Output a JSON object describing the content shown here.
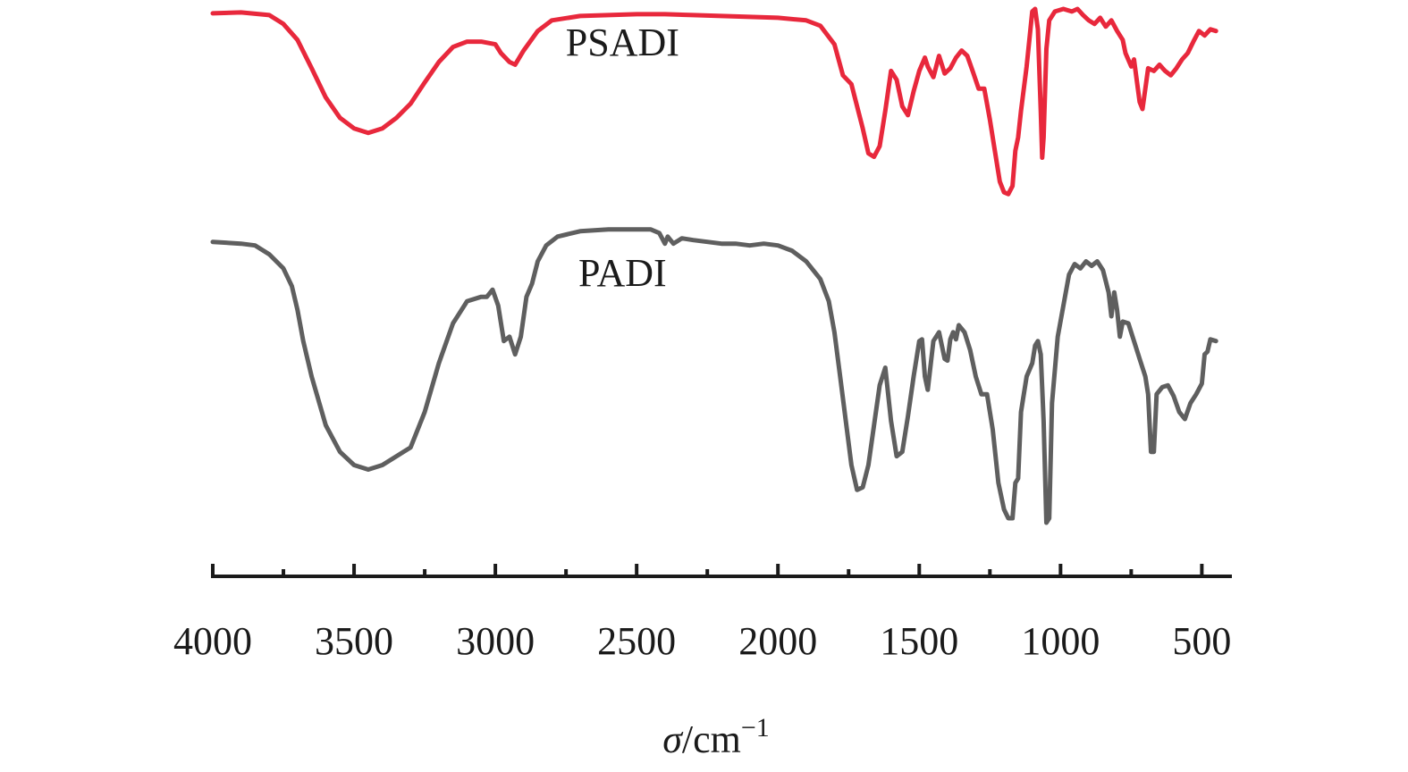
{
  "chart_data": {
    "type": "line",
    "title": "",
    "xlabel_symbol": "σ",
    "xlabel_unit": "/cm",
    "xlabel_exp": "−1",
    "ylabel": "",
    "xlim": [
      4000,
      400
    ],
    "x_reversed": true,
    "x_ticks": [
      4000,
      3500,
      3000,
      2500,
      2000,
      1500,
      1000,
      500
    ],
    "x_tick_labels": [
      "4000",
      "3500",
      "3000",
      "2500",
      "2000",
      "1500",
      "1000",
      "500"
    ],
    "x_minor_ticks": [
      3750,
      3250,
      2750,
      2250,
      1750,
      1250,
      750
    ],
    "y_axis_visible": false,
    "grid": false,
    "series": [
      {
        "name": "PSADI",
        "color": "#e8283c",
        "points": [
          [
            4000,
            10
          ],
          [
            3900,
            9
          ],
          [
            3800,
            12
          ],
          [
            3750,
            22
          ],
          [
            3700,
            40
          ],
          [
            3650,
            72
          ],
          [
            3600,
            105
          ],
          [
            3550,
            128
          ],
          [
            3500,
            140
          ],
          [
            3450,
            145
          ],
          [
            3400,
            140
          ],
          [
            3350,
            128
          ],
          [
            3300,
            112
          ],
          [
            3250,
            88
          ],
          [
            3200,
            65
          ],
          [
            3150,
            48
          ],
          [
            3100,
            42
          ],
          [
            3050,
            42
          ],
          [
            3000,
            45
          ],
          [
            2980,
            55
          ],
          [
            2950,
            65
          ],
          [
            2930,
            68
          ],
          [
            2900,
            52
          ],
          [
            2850,
            30
          ],
          [
            2800,
            18
          ],
          [
            2700,
            13
          ],
          [
            2600,
            12
          ],
          [
            2500,
            11
          ],
          [
            2400,
            11
          ],
          [
            2300,
            12
          ],
          [
            2200,
            13
          ],
          [
            2100,
            14
          ],
          [
            2000,
            15
          ],
          [
            1900,
            18
          ],
          [
            1850,
            24
          ],
          [
            1800,
            45
          ],
          [
            1770,
            80
          ],
          [
            1740,
            90
          ],
          [
            1700,
            140
          ],
          [
            1680,
            168
          ],
          [
            1660,
            172
          ],
          [
            1640,
            160
          ],
          [
            1620,
            120
          ],
          [
            1600,
            75
          ],
          [
            1580,
            85
          ],
          [
            1560,
            115
          ],
          [
            1540,
            125
          ],
          [
            1520,
            98
          ],
          [
            1500,
            75
          ],
          [
            1480,
            60
          ],
          [
            1470,
            70
          ],
          [
            1450,
            82
          ],
          [
            1430,
            58
          ],
          [
            1410,
            78
          ],
          [
            1390,
            72
          ],
          [
            1370,
            60
          ],
          [
            1350,
            52
          ],
          [
            1330,
            58
          ],
          [
            1310,
            76
          ],
          [
            1290,
            95
          ],
          [
            1270,
            95
          ],
          [
            1250,
            130
          ],
          [
            1230,
            170
          ],
          [
            1215,
            200
          ],
          [
            1200,
            212
          ],
          [
            1185,
            214
          ],
          [
            1170,
            205
          ],
          [
            1160,
            165
          ],
          [
            1150,
            150
          ],
          [
            1140,
            120
          ],
          [
            1120,
            70
          ],
          [
            1100,
            8
          ],
          [
            1090,
            5
          ],
          [
            1080,
            28
          ],
          [
            1070,
            120
          ],
          [
            1065,
            173
          ],
          [
            1060,
            150
          ],
          [
            1050,
            50
          ],
          [
            1040,
            18
          ],
          [
            1020,
            8
          ],
          [
            990,
            5
          ],
          [
            960,
            8
          ],
          [
            940,
            5
          ],
          [
            920,
            12
          ],
          [
            900,
            18
          ],
          [
            880,
            22
          ],
          [
            860,
            15
          ],
          [
            840,
            25
          ],
          [
            820,
            18
          ],
          [
            800,
            30
          ],
          [
            780,
            40
          ],
          [
            770,
            55
          ],
          [
            750,
            70
          ],
          [
            740,
            62
          ],
          [
            720,
            110
          ],
          [
            710,
            118
          ],
          [
            700,
            95
          ],
          [
            690,
            72
          ],
          [
            670,
            75
          ],
          [
            650,
            68
          ],
          [
            630,
            75
          ],
          [
            610,
            80
          ],
          [
            590,
            72
          ],
          [
            570,
            62
          ],
          [
            550,
            55
          ],
          [
            530,
            42
          ],
          [
            510,
            30
          ],
          [
            490,
            35
          ],
          [
            470,
            28
          ],
          [
            450,
            30
          ]
        ]
      },
      {
        "name": "PADI",
        "color": "#5f5f5f",
        "points": [
          [
            4000,
            268
          ],
          [
            3900,
            270
          ],
          [
            3850,
            272
          ],
          [
            3800,
            282
          ],
          [
            3750,
            298
          ],
          [
            3720,
            318
          ],
          [
            3700,
            345
          ],
          [
            3680,
            380
          ],
          [
            3650,
            420
          ],
          [
            3600,
            475
          ],
          [
            3550,
            505
          ],
          [
            3500,
            520
          ],
          [
            3450,
            525
          ],
          [
            3400,
            520
          ],
          [
            3350,
            510
          ],
          [
            3300,
            500
          ],
          [
            3250,
            460
          ],
          [
            3200,
            405
          ],
          [
            3150,
            360
          ],
          [
            3100,
            335
          ],
          [
            3050,
            330
          ],
          [
            3030,
            330
          ],
          [
            3010,
            322
          ],
          [
            2990,
            340
          ],
          [
            2970,
            380
          ],
          [
            2950,
            375
          ],
          [
            2930,
            395
          ],
          [
            2910,
            375
          ],
          [
            2890,
            330
          ],
          [
            2870,
            315
          ],
          [
            2850,
            290
          ],
          [
            2820,
            272
          ],
          [
            2780,
            262
          ],
          [
            2700,
            256
          ],
          [
            2600,
            254
          ],
          [
            2500,
            254
          ],
          [
            2450,
            254
          ],
          [
            2420,
            258
          ],
          [
            2400,
            270
          ],
          [
            2390,
            262
          ],
          [
            2370,
            270
          ],
          [
            2340,
            264
          ],
          [
            2300,
            266
          ],
          [
            2250,
            268
          ],
          [
            2200,
            270
          ],
          [
            2150,
            270
          ],
          [
            2100,
            272
          ],
          [
            2050,
            270
          ],
          [
            2000,
            272
          ],
          [
            1950,
            278
          ],
          [
            1900,
            290
          ],
          [
            1850,
            310
          ],
          [
            1820,
            335
          ],
          [
            1800,
            370
          ],
          [
            1780,
            420
          ],
          [
            1760,
            470
          ],
          [
            1740,
            520
          ],
          [
            1720,
            548
          ],
          [
            1700,
            545
          ],
          [
            1680,
            520
          ],
          [
            1660,
            475
          ],
          [
            1640,
            430
          ],
          [
            1620,
            410
          ],
          [
            1600,
            470
          ],
          [
            1580,
            510
          ],
          [
            1560,
            505
          ],
          [
            1540,
            465
          ],
          [
            1520,
            420
          ],
          [
            1500,
            380
          ],
          [
            1490,
            378
          ],
          [
            1480,
            420
          ],
          [
            1470,
            435
          ],
          [
            1450,
            380
          ],
          [
            1440,
            375
          ],
          [
            1430,
            370
          ],
          [
            1410,
            400
          ],
          [
            1400,
            402
          ],
          [
            1390,
            378
          ],
          [
            1380,
            370
          ],
          [
            1370,
            378
          ],
          [
            1360,
            362
          ],
          [
            1340,
            370
          ],
          [
            1320,
            390
          ],
          [
            1300,
            420
          ],
          [
            1280,
            440
          ],
          [
            1260,
            440
          ],
          [
            1240,
            480
          ],
          [
            1220,
            540
          ],
          [
            1200,
            570
          ],
          [
            1185,
            580
          ],
          [
            1170,
            580
          ],
          [
            1160,
            540
          ],
          [
            1150,
            535
          ],
          [
            1140,
            460
          ],
          [
            1120,
            420
          ],
          [
            1100,
            405
          ],
          [
            1090,
            385
          ],
          [
            1080,
            380
          ],
          [
            1070,
            395
          ],
          [
            1060,
            470
          ],
          [
            1050,
            585
          ],
          [
            1040,
            580
          ],
          [
            1030,
            450
          ],
          [
            1010,
            375
          ],
          [
            990,
            340
          ],
          [
            970,
            305
          ],
          [
            950,
            293
          ],
          [
            930,
            298
          ],
          [
            910,
            290
          ],
          [
            890,
            295
          ],
          [
            870,
            290
          ],
          [
            850,
            300
          ],
          [
            830,
            325
          ],
          [
            820,
            352
          ],
          [
            810,
            325
          ],
          [
            800,
            345
          ],
          [
            790,
            375
          ],
          [
            780,
            358
          ],
          [
            760,
            360
          ],
          [
            740,
            380
          ],
          [
            720,
            400
          ],
          [
            700,
            420
          ],
          [
            690,
            440
          ],
          [
            680,
            505
          ],
          [
            670,
            505
          ],
          [
            660,
            440
          ],
          [
            640,
            432
          ],
          [
            620,
            430
          ],
          [
            600,
            442
          ],
          [
            580,
            460
          ],
          [
            560,
            468
          ],
          [
            540,
            450
          ],
          [
            520,
            440
          ],
          [
            500,
            428
          ],
          [
            490,
            395
          ],
          [
            480,
            392
          ],
          [
            470,
            378
          ],
          [
            450,
            380
          ]
        ]
      }
    ]
  }
}
